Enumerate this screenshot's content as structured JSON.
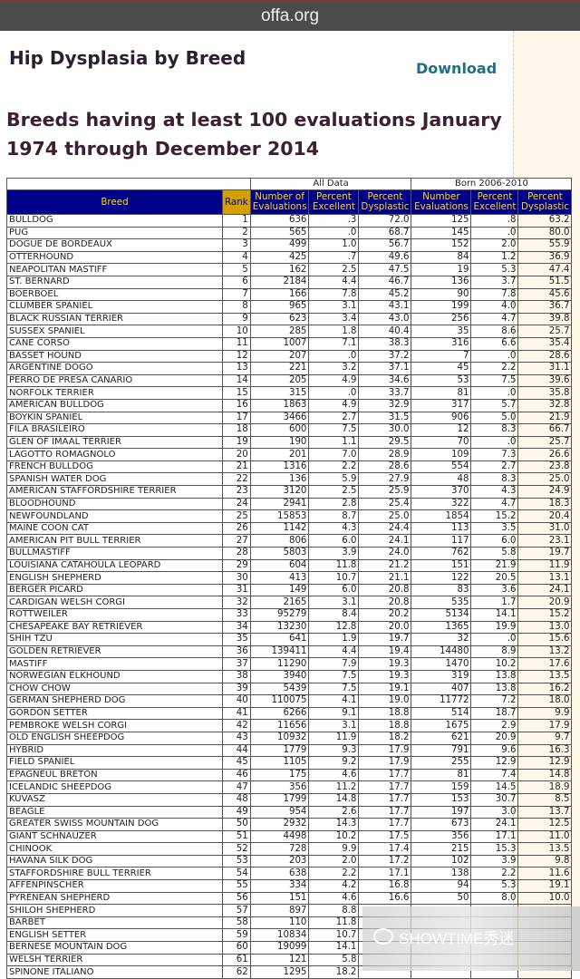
{
  "browser": {
    "url": "offa.org"
  },
  "page": {
    "title": "Hip Dysplasia by Breed",
    "download": "Download",
    "subtitle": "Breeds having at least 100 evaluations January 1974 through December 2014"
  },
  "table": {
    "groups": [
      "All Data",
      "Born 2006-2010"
    ],
    "headers": [
      "Breed",
      "Rank",
      "Number of Evaluations",
      "Percent Excellent",
      "Percent Dysplastic",
      "Number Evaluations",
      "Percent Excellent",
      "Percent Dysplastic"
    ],
    "rows": [
      [
        "BULLDOG",
        "1",
        "636",
        ".3",
        "72.0",
        "125",
        ".8",
        "63.2"
      ],
      [
        "PUG",
        "2",
        "565",
        ".0",
        "68.7",
        "145",
        ".0",
        "80.0"
      ],
      [
        "DOGUE DE BORDEAUX",
        "3",
        "499",
        "1.0",
        "56.7",
        "152",
        "2.0",
        "55.9"
      ],
      [
        "OTTERHOUND",
        "4",
        "425",
        ".7",
        "49.6",
        "84",
        "1.2",
        "36.9"
      ],
      [
        "NEAPOLITAN MASTIFF",
        "5",
        "162",
        "2.5",
        "47.5",
        "19",
        "5.3",
        "47.4"
      ],
      [
        "ST. BERNARD",
        "6",
        "2184",
        "4.4",
        "46.7",
        "136",
        "3.7",
        "51.5"
      ],
      [
        "BOERBOEL",
        "7",
        "166",
        "7.8",
        "45.2",
        "90",
        "7.8",
        "45.6"
      ],
      [
        "CLUMBER SPANIEL",
        "8",
        "965",
        "3.1",
        "43.1",
        "199",
        "4.0",
        "36.7"
      ],
      [
        "BLACK RUSSIAN TERRIER",
        "9",
        "623",
        "3.4",
        "43.0",
        "256",
        "4.7",
        "39.8"
      ],
      [
        "SUSSEX SPANIEL",
        "10",
        "285",
        "1.8",
        "40.4",
        "35",
        "8.6",
        "25.7"
      ],
      [
        "CANE CORSO",
        "11",
        "1007",
        "7.1",
        "38.3",
        "316",
        "6.6",
        "35.4"
      ],
      [
        "BASSET HOUND",
        "12",
        "207",
        ".0",
        "37.2",
        "7",
        ".0",
        "28.6"
      ],
      [
        "ARGENTINE DOGO",
        "13",
        "221",
        "3.2",
        "37.1",
        "45",
        "2.2",
        "31.1"
      ],
      [
        "PERRO DE PRESA CANARIO",
        "14",
        "205",
        "4.9",
        "34.6",
        "53",
        "7.5",
        "39.6"
      ],
      [
        "NORFOLK TERRIER",
        "15",
        "315",
        ".0",
        "33.7",
        "81",
        ".0",
        "35.8"
      ],
      [
        "AMERICAN BULLDOG",
        "16",
        "1863",
        "4.9",
        "32.9",
        "317",
        "5.7",
        "32.8"
      ],
      [
        "BOYKIN SPANIEL",
        "17",
        "3466",
        "2.7",
        "31.5",
        "906",
        "5.0",
        "21.9"
      ],
      [
        "FILA BRASILEIRO",
        "18",
        "600",
        "7.5",
        "30.0",
        "12",
        "8.3",
        "66.7"
      ],
      [
        "GLEN OF IMAAL TERRIER",
        "19",
        "190",
        "1.1",
        "29.5",
        "70",
        ".0",
        "25.7"
      ],
      [
        "LAGOTTO ROMAGNOLO",
        "20",
        "201",
        "7.0",
        "28.9",
        "109",
        "7.3",
        "26.6"
      ],
      [
        "FRENCH BULLDOG",
        "21",
        "1316",
        "2.2",
        "28.6",
        "554",
        "2.7",
        "23.8"
      ],
      [
        "SPANISH WATER DOG",
        "22",
        "136",
        "5.9",
        "27.9",
        "48",
        "8.3",
        "25.0"
      ],
      [
        "AMERICAN STAFFORDSHIRE TERRIER",
        "23",
        "3120",
        "2.5",
        "25.9",
        "370",
        "4.3",
        "24.9"
      ],
      [
        "BLOODHOUND",
        "24",
        "2941",
        "2.8",
        "25.4",
        "322",
        "4.7",
        "18.3"
      ],
      [
        "NEWFOUNDLAND",
        "25",
        "15853",
        "8.7",
        "25.0",
        "1854",
        "15.2",
        "20.4"
      ],
      [
        "MAINE COON CAT",
        "26",
        "1142",
        "4.3",
        "24.4",
        "113",
        "3.5",
        "31.0"
      ],
      [
        "AMERICAN PIT BULL TERRIER",
        "27",
        "806",
        "6.0",
        "24.1",
        "117",
        "6.0",
        "23.1"
      ],
      [
        "BULLMASTIFF",
        "28",
        "5803",
        "3.9",
        "24.0",
        "762",
        "5.8",
        "19.7"
      ],
      [
        "LOUISIANA CATAHOULA LEOPARD",
        "29",
        "604",
        "11.8",
        "21.2",
        "151",
        "21.9",
        "11.9"
      ],
      [
        "ENGLISH SHEPHERD",
        "30",
        "413",
        "10.7",
        "21.1",
        "122",
        "20.5",
        "13.1"
      ],
      [
        "BERGER PICARD",
        "31",
        "149",
        "6.0",
        "20.8",
        "83",
        "3.6",
        "24.1"
      ],
      [
        "CARDIGAN WELSH CORGI",
        "32",
        "2165",
        "3.1",
        "20.8",
        "535",
        "1.7",
        "20.9"
      ],
      [
        "ROTTWEILER",
        "33",
        "95279",
        "8.4",
        "20.2",
        "5134",
        "14.1",
        "15.2"
      ],
      [
        "CHESAPEAKE BAY RETRIEVER",
        "34",
        "13230",
        "12.8",
        "20.0",
        "1365",
        "19.9",
        "13.0"
      ],
      [
        "SHIH TZU",
        "35",
        "641",
        "1.9",
        "19.7",
        "32",
        ".0",
        "15.6"
      ],
      [
        "GOLDEN RETRIEVER",
        "36",
        "139411",
        "4.4",
        "19.4",
        "14480",
        "8.9",
        "13.2"
      ],
      [
        "MASTIFF",
        "37",
        "11290",
        "7.9",
        "19.3",
        "1470",
        "10.2",
        "17.6"
      ],
      [
        "NORWEGIAN ELKHOUND",
        "38",
        "3940",
        "7.5",
        "19.3",
        "319",
        "13.8",
        "13.5"
      ],
      [
        "CHOW CHOW",
        "39",
        "5439",
        "7.5",
        "19.1",
        "407",
        "13.8",
        "16.2"
      ],
      [
        "GERMAN SHEPHERD DOG",
        "40",
        "110075",
        "4.1",
        "19.0",
        "11772",
        "7.2",
        "18.0"
      ],
      [
        "GORDON SETTER",
        "41",
        "6266",
        "9.1",
        "18.8",
        "514",
        "18.7",
        "9.9"
      ],
      [
        "PEMBROKE WELSH CORGI",
        "42",
        "11656",
        "3.1",
        "18.8",
        "1675",
        "2.9",
        "17.9"
      ],
      [
        "OLD ENGLISH SHEEPDOG",
        "43",
        "10932",
        "11.9",
        "18.2",
        "621",
        "20.9",
        "9.7"
      ],
      [
        "HYBRID",
        "44",
        "1779",
        "9.3",
        "17.9",
        "791",
        "9.6",
        "16.3"
      ],
      [
        "FIELD SPANIEL",
        "45",
        "1105",
        "9.2",
        "17.9",
        "255",
        "12.9",
        "12.9"
      ],
      [
        "EPAGNEUL BRETON",
        "46",
        "175",
        "4.6",
        "17.7",
        "81",
        "7.4",
        "14.8"
      ],
      [
        "ICELANDIC SHEEPDOG",
        "47",
        "356",
        "11.2",
        "17.7",
        "159",
        "14.5",
        "18.9"
      ],
      [
        "KUVASZ",
        "48",
        "1799",
        "14.8",
        "17.7",
        "153",
        "30.7",
        "8.5"
      ],
      [
        "BEAGLE",
        "49",
        "954",
        "2.6",
        "17.7",
        "197",
        "3.0",
        "13.7"
      ],
      [
        "GREATER SWISS MOUNTAIN DOG",
        "50",
        "2932",
        "14.3",
        "17.7",
        "673",
        "24.1",
        "12.5"
      ],
      [
        "GIANT SCHNAUZER",
        "51",
        "4498",
        "10.2",
        "17.5",
        "356",
        "17.1",
        "11.0"
      ],
      [
        "CHINOOK",
        "52",
        "728",
        "9.9",
        "17.4",
        "215",
        "15.3",
        "13.5"
      ],
      [
        "HAVANA SILK DOG",
        "53",
        "203",
        "2.0",
        "17.2",
        "102",
        "3.9",
        "9.8"
      ],
      [
        "STAFFORDSHIRE BULL TERRIER",
        "54",
        "638",
        "2.2",
        "17.1",
        "138",
        "2.2",
        "11.6"
      ],
      [
        "AFFENPINSCHER",
        "55",
        "334",
        "4.2",
        "16.8",
        "94",
        "5.3",
        "19.1"
      ],
      [
        "PYRENEAN SHEPHERD",
        "56",
        "151",
        "4.6",
        "16.6",
        "50",
        "8.0",
        "10.0"
      ],
      [
        "SHILOH SHEPHERD",
        "57",
        "897",
        "8.8",
        "",
        "",
        "",
        ""
      ],
      [
        "BARBET",
        "58",
        "110",
        "11.8",
        "",
        "",
        "",
        ""
      ],
      [
        "ENGLISH SETTER",
        "59",
        "10834",
        "10.7",
        "",
        "",
        "",
        ""
      ],
      [
        "BERNESE MOUNTAIN DOG",
        "60",
        "19099",
        "14.1",
        "",
        "",
        "",
        ""
      ],
      [
        "WELSH TERRIER",
        "61",
        "121",
        "5.8",
        "",
        "",
        "",
        ""
      ],
      [
        "SPINONE ITALIANO",
        "62",
        "1295",
        "18.2",
        "",
        "",
        "",
        ""
      ]
    ]
  },
  "watermark": {
    "text": "SHOWTIME秀迷",
    "icon": "wechat-icon"
  }
}
